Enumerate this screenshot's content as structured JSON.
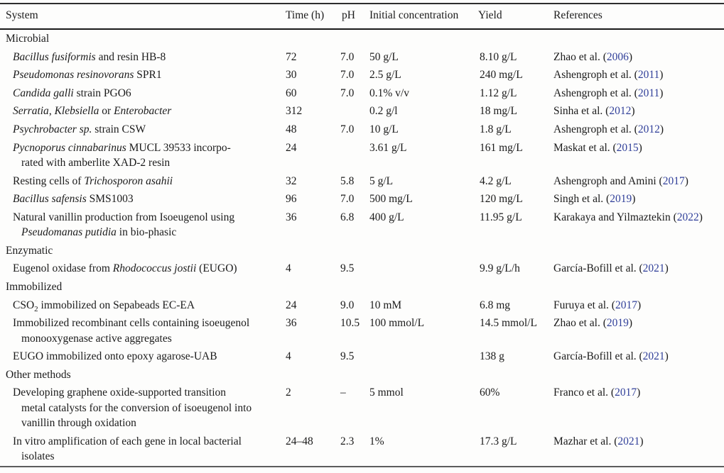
{
  "table": {
    "link_color": "#31409a",
    "columns": [
      {
        "label": "System"
      },
      {
        "label": "Time (h)"
      },
      {
        "label": "pH"
      },
      {
        "label": "Initial concentration"
      },
      {
        "label": "Yield"
      },
      {
        "label": "References"
      }
    ],
    "rows": [
      {
        "kind": "section",
        "label": "Microbial"
      },
      {
        "kind": "item",
        "system": [
          {
            "t": "Bacillus fusiformis",
            "i": true
          },
          {
            "t": " and resin HB-8"
          }
        ],
        "time": "72",
        "ph": "7.0",
        "conc": "50 g/L",
        "yield": "8.10 g/L",
        "ref": {
          "pre": "Zhao et al. (",
          "year": "2006",
          "post": ")"
        }
      },
      {
        "kind": "item",
        "system": [
          {
            "t": "Pseudomonas resinovorans",
            "i": true
          },
          {
            "t": " SPR1"
          }
        ],
        "time": "30",
        "ph": "7.0",
        "conc": "2.5 g/L",
        "yield": "240 mg/L",
        "ref": {
          "pre": "Ashengroph et al. (",
          "year": "2011",
          "post": ")"
        }
      },
      {
        "kind": "item",
        "system": [
          {
            "t": "Candida galli",
            "i": true
          },
          {
            "t": " strain PGO6"
          }
        ],
        "time": "60",
        "ph": "7.0",
        "conc": "0.1% v/v",
        "yield": "1.12 g/L",
        "ref": {
          "pre": "Ashengroph et al. (",
          "year": "2011",
          "post": ")"
        }
      },
      {
        "kind": "item",
        "system": [
          {
            "t": "Serratia",
            "i": true
          },
          {
            "t": ", "
          },
          {
            "t": "Klebsiella",
            "i": true
          },
          {
            "t": " or "
          },
          {
            "t": "Enterobacter",
            "i": true
          }
        ],
        "time": "312",
        "ph": "",
        "conc": "0.2 g/l",
        "yield": "18 mg/L",
        "ref": {
          "pre": "Sinha et al. (",
          "year": "2012",
          "post": ")"
        }
      },
      {
        "kind": "item",
        "system": [
          {
            "t": "Psychrobacter sp.",
            "i": true
          },
          {
            "t": " strain CSW"
          }
        ],
        "time": "48",
        "ph": "7.0",
        "conc": "10 g/L",
        "yield": "1.8 g/L",
        "ref": {
          "pre": "Ashengroph et al. (",
          "year": "2012",
          "post": ")"
        }
      },
      {
        "kind": "item",
        "system": [
          {
            "t": "Pycnoporus cinnabarinus",
            "i": true
          },
          {
            "t": " MUCL 39533 incorpo-"
          },
          {
            "br": true
          },
          {
            "t": "rated with amberlite XAD-2 resin"
          }
        ],
        "time": "24",
        "ph": "",
        "conc": "3.61 g/L",
        "yield": "161 mg/L",
        "ref": {
          "pre": "Maskat et al. (",
          "year": "2015",
          "post": ")"
        }
      },
      {
        "kind": "item",
        "system": [
          {
            "t": "Resting cells of "
          },
          {
            "t": "Trichosporon asahii",
            "i": true
          }
        ],
        "time": "32",
        "ph": "5.8",
        "conc": "5 g/L",
        "yield": "4.2 g/L",
        "ref": {
          "pre": "Ashengroph and Amini (",
          "year": "2017",
          "post": ")"
        }
      },
      {
        "kind": "item",
        "system": [
          {
            "t": "Bacillus safensis",
            "i": true
          },
          {
            "t": " SMS1003"
          }
        ],
        "time": "96",
        "ph": "7.0",
        "conc": "500 mg/L",
        "yield": "120 mg/L",
        "ref": {
          "pre": "Singh et al. (",
          "year": "2019",
          "post": ")"
        }
      },
      {
        "kind": "item",
        "system": [
          {
            "t": "Natural vanillin production from Isoeugenol using"
          },
          {
            "br": true
          },
          {
            "t": "Pseudomanas putidia",
            "i": true
          },
          {
            "t": " in bio-phasic"
          }
        ],
        "time": "36",
        "ph": "6.8",
        "conc": "400 g/L",
        "yield": "11.95 g/L",
        "ref": {
          "pre": "Karakaya and Yilmaztekin (",
          "year": "2022",
          "post": ")"
        }
      },
      {
        "kind": "section",
        "label": "Enzymatic"
      },
      {
        "kind": "item",
        "system": [
          {
            "t": "Eugenol oxidase from "
          },
          {
            "t": "Rhodococcus jostii",
            "i": true
          },
          {
            "t": " (EUGO)"
          }
        ],
        "time": "4",
        "ph": "9.5",
        "conc": "",
        "yield": "9.9 g/L/h",
        "ref": {
          "pre": "García-Bofill et al. (",
          "year": "2021",
          "post": ")"
        }
      },
      {
        "kind": "section",
        "label": "Immobilized"
      },
      {
        "kind": "item",
        "system": [
          {
            "t": "CSO"
          },
          {
            "t": "2",
            "sub": true
          },
          {
            "t": " immobilized on Sepabeads EC-EA"
          }
        ],
        "time": "24",
        "ph": "9.0",
        "conc": "10 mM",
        "yield": "6.8 mg",
        "ref": {
          "pre": "Furuya et al. (",
          "year": "2017",
          "post": ")"
        }
      },
      {
        "kind": "item",
        "system": [
          {
            "t": "Immobilized recombinant cells containing isoeugenol"
          },
          {
            "br": true
          },
          {
            "t": "monooxygenase active aggregates"
          }
        ],
        "time": "36",
        "ph": "10.5",
        "conc": "100 mmol/L",
        "yield": "14.5 mmol/L",
        "ref": {
          "pre": "Zhao et al. (",
          "year": "2019",
          "post": ")"
        }
      },
      {
        "kind": "item",
        "system": [
          {
            "t": "EUGO immobilized onto epoxy agarose-UAB"
          }
        ],
        "time": "4",
        "ph": "9.5",
        "conc": "",
        "yield": "138 g",
        "ref": {
          "pre": "García-Bofill et al. (",
          "year": "2021",
          "post": ")"
        }
      },
      {
        "kind": "section",
        "label": "Other methods"
      },
      {
        "kind": "item",
        "system": [
          {
            "t": "Developing graphene oxide-supported transition"
          },
          {
            "br": true
          },
          {
            "t": "metal catalysts for the conversion of isoeugenol into"
          },
          {
            "br": true
          },
          {
            "t": "vanillin through oxidation"
          }
        ],
        "time": "2",
        "ph": "–",
        "conc": "5 mmol",
        "yield": "60%",
        "ref": {
          "pre": "Franco et al. (",
          "year": "2017",
          "post": ")"
        }
      },
      {
        "kind": "item",
        "system": [
          {
            "t": "In vitro amplification of each gene in local bacterial"
          },
          {
            "br": true
          },
          {
            "t": "isolates"
          }
        ],
        "time": "24–48",
        "ph": "2.3",
        "conc": "1%",
        "yield": "17.3 g/L",
        "ref": {
          "pre": "Mazhar et al. (",
          "year": "2021",
          "post": ")"
        }
      }
    ]
  }
}
